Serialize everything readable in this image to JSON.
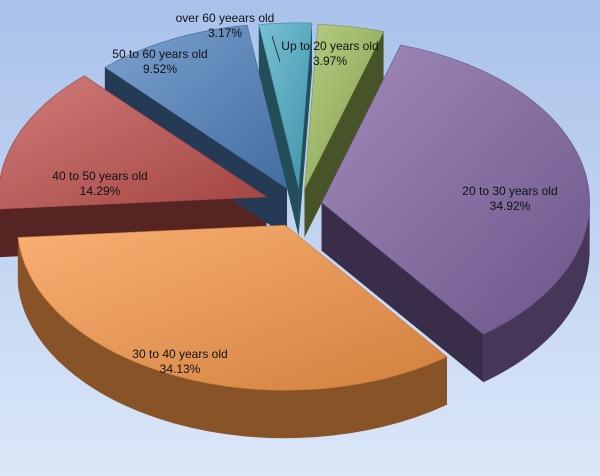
{
  "chart_data": {
    "type": "pie",
    "style": "3d-exploded",
    "slices": [
      {
        "label": "Up to 20 years old",
        "value": 3.97,
        "value_text": "3.97%",
        "color": "#9bbb59"
      },
      {
        "label": "20 to 30 years old",
        "value": 34.92,
        "value_text": "34.92%",
        "color": "#8064a2"
      },
      {
        "label": "30 to 40 years old",
        "value": 34.13,
        "value_text": "34.13%",
        "color": "#f79646"
      },
      {
        "label": "40 to 50 years old",
        "value": 14.29,
        "value_text": "14.29%",
        "color": "#c0504d"
      },
      {
        "label": "50 to 60 years old",
        "value": 9.52,
        "value_text": "9.52%",
        "color": "#4f81bd"
      },
      {
        "label": "over 60 yeears old",
        "value": 3.17,
        "value_text": "3.17%",
        "color": "#4bacc6"
      }
    ],
    "legend": "none",
    "data_labels": "category and percent"
  }
}
